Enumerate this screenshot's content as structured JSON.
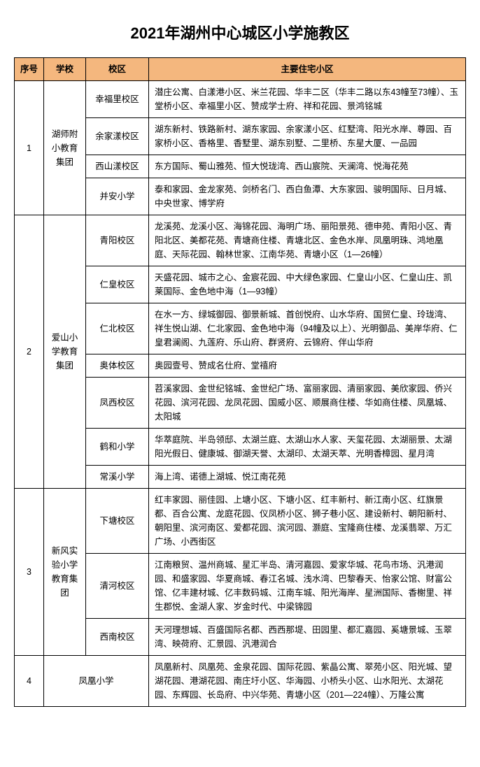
{
  "title": "2021年湖州中心城区小学施教区",
  "columns": [
    "序号",
    "学校",
    "校区",
    "主要住宅小区"
  ],
  "header_bg": "#f4b77e",
  "rows": [
    {
      "seq": "1",
      "seq_rowspan": 4,
      "school": "湖师附小教育集团",
      "school_rowspan": 4,
      "campus": "幸福里校区",
      "zone": "潜庄公寓、白漾港小区、米兰花园、华丰二区（华丰二路以东43幢至73幢）、玉堂桥小区、幸福里小区、赞成学士府、祥和花园、景鸿铭城"
    },
    {
      "campus": "余家漾校区",
      "zone": "湖东新村、铁路新村、湖东家园、余家漾小区、红墅湾、阳光水岸、尊园、百家桥小区、香格里、香墅里、湖东别墅、二里桥、东星大厦、一品园"
    },
    {
      "campus": "西山漾校区",
      "zone": "东方国际、蜀山雅苑、恒大悦珑湾、西山宸院、天澜湾、悦海花苑"
    },
    {
      "campus": "并安小学",
      "zone": "泰和家园、金龙家苑、剑桥名门、西白鱼潭、大东家园、骏明国际、日月城、中央世家、博学府"
    },
    {
      "seq": "2",
      "seq_rowspan": 7,
      "school": "爱山小学教育集团",
      "school_rowspan": 7,
      "campus": "青阳校区",
      "zone": "龙溪苑、龙溪小区、海锦花园、海明广场、丽阳景苑、德申苑、青阳小区、青阳北区、美都花苑、青塘商住楼、青塘北区、金色水岸、凤凰明珠、鸿地凰庭、天际花园、翰林世家、江南华苑、青塘小区（1—26幢）"
    },
    {
      "campus": "仁皇校区",
      "zone": "天盛花园、城市之心、金宸花园、中大绿色家园、仁皇山小区、仁皇山庄、凯莱国际、金色地中海（1—93幢）"
    },
    {
      "campus": "仁北校区",
      "zone": "在水一方、绿城御园、御景新城、首创悦府、山水华府、国贸仁皇、玲珑湾、祥生悦山湖、仁北家园、金色地中海（94幢及以上）、光明御品、美岸华府、仁皇君澜阁、九莲府、乐山府、群贤府、云锦府、伴山华府"
    },
    {
      "campus": "奥体校区",
      "zone": "奥园壹号、赞成名仕府、堂禧府"
    },
    {
      "campus": "凤西校区",
      "zone": "苕溪家园、金世纪铭城、金世纪广场、富丽家园、清丽家园、美欣家园、侨兴花园、滨河花园、龙凤花园、国威小区、顺展商住楼、华如商住楼、凤凰城、太阳城"
    },
    {
      "campus": "鹤和小学",
      "zone": "华萃庭院、半岛领邸、太湖兰庭、太湖山水人家、天玺花园、太湖丽景、太湖阳光假日、健康城、御湖天誉、太湖印、太湖天萃、光明香樟园、星月湾"
    },
    {
      "campus": "常溪小学",
      "zone": "海上湾、诺德上湖城、悦江南花苑"
    },
    {
      "seq": "3",
      "seq_rowspan": 3,
      "school": "新风实验小学教育集团",
      "school_rowspan": 3,
      "campus": "下塘校区",
      "zone": "红丰家园、丽佳园、上塘小区、下塘小区、红丰新村、新江南小区、红旗景都、百合公寓、龙庭花园、仪凤桥小区、狮子巷小区、建设新村、朝阳新村、朝阳里、滨河南区、爱都花园、滨河园、灏庭、宝隆商住楼、龙溪翡翠、万汇广场、小西街区"
    },
    {
      "campus": "清河校区",
      "zone": "江南粮贸、温州商城、星汇半岛、清河嘉园、爱家华城、花鸟市场、汎港润园、和盛家园、华夏商城、春江名城、浅水湾、巴黎春天、怡家公馆、财富公馆、亿丰建材城、亿丰数码城、江南车城、阳光海岸、星洲国际、香榭里、祥生郡悦、金湖人家、岁金时代、中梁锦园"
    },
    {
      "campus": "西南校区",
      "zone": "天河理想城、百盛国际名都、西西那堤、田园里、都汇嘉园、奚塘景城、玉翠湾、映荷府、汇景园、汎港润合"
    },
    {
      "seq": "4",
      "seq_rowspan": 1,
      "school": "凤凰小学",
      "school_rowspan": 1,
      "school_colspan": 2,
      "zone": "凤凰新村、凤凰苑、金泉花园、国际花园、紫晶公寓、翠苑小区、阳光城、望湖花园、港湖花园、南庄圩小区、华海园、小桥头小区、山水阳光、太湖花园、东辉园、长岛府、中兴华苑、青塘小区（201—224幢）、万隆公寓"
    }
  ]
}
